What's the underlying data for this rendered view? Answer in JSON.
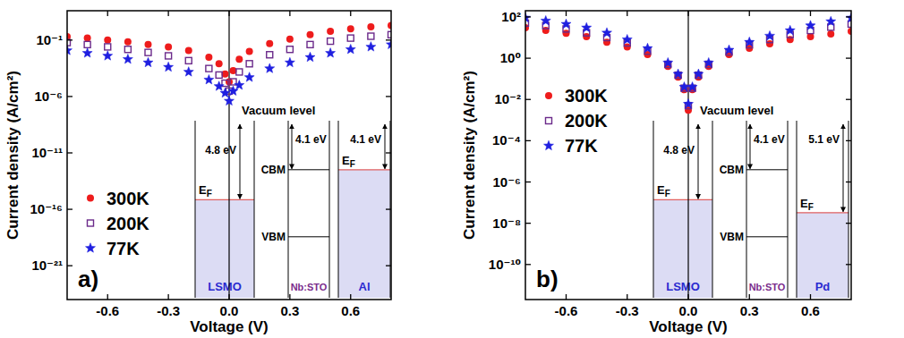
{
  "chart_data": [
    {
      "type": "scatter",
      "x_label": "Voltage (V)",
      "y_label": "Current density (A/cm²)",
      "log": "y",
      "grid": false,
      "legend": "center left",
      "xlim": [
        -0.8,
        0.8
      ],
      "xticks": [
        -0.6,
        -0.3,
        {
          "value": 0,
          "label": "0.0"
        },
        0.3,
        0.6
      ],
      "ylim": [
        1e-24,
        40
      ],
      "yticks": [
        {
          "value": 1e-21,
          "label": "10⁻²¹"
        },
        {
          "value": 1e-16,
          "label": "10⁻¹⁶"
        },
        {
          "value": 1e-11,
          "label": "10⁻¹¹"
        },
        {
          "value": 1e-06,
          "label": "10⁻⁶"
        },
        {
          "value": 0.1,
          "label": "10⁻¹"
        }
      ],
      "x": [
        -0.8,
        -0.7,
        -0.6,
        -0.5,
        -0.4,
        -0.3,
        -0.2,
        -0.1,
        -0.05,
        -0.02,
        0,
        0.02,
        0.05,
        0.1,
        0.2,
        0.3,
        0.4,
        0.5,
        0.6,
        0.7,
        0.8
      ],
      "series": [
        {
          "name": "300K",
          "color": "#ee1c1c",
          "marker": "circle",
          "values": [
            0.2,
            0.15,
            0.1,
            0.07,
            0.04,
            0.025,
            0.012,
            0.003,
            0.0008,
            0.0001,
            2e-05,
            0.0002,
            0.002,
            0.01,
            0.05,
            0.12,
            0.3,
            0.6,
            1,
            1.5,
            2
          ]
        },
        {
          "name": "200K",
          "color": "#6b2a8a",
          "marker": "square_open",
          "values": [
            0.06,
            0.04,
            0.025,
            0.015,
            0.008,
            0.004,
            0.0015,
            0.0003,
            8e-05,
            1.5e-05,
            3e-06,
            2e-05,
            0.00015,
            0.0008,
            0.005,
            0.015,
            0.04,
            0.08,
            0.15,
            0.22,
            0.3
          ]
        },
        {
          "name": "77K",
          "color": "#1f1fe0",
          "marker": "star",
          "values": [
            0.012,
            0.007,
            0.004,
            0.002,
            0.001,
            0.0004,
            0.00015,
            3e-05,
            8e-06,
            2e-06,
            4e-07,
            3e-06,
            1e-05,
            5e-05,
            0.0003,
            0.001,
            0.003,
            0.007,
            0.015,
            0.025,
            0.04
          ]
        }
      ],
      "annotations": {
        "panel_label": "a)",
        "band_diagram": {
          "vacuum": "Vacuum level",
          "fermi": "EF",
          "cbm": "CBM",
          "vbm": "VBM",
          "layers": [
            {
              "name": "LSMO",
              "color": "#2a2ad0",
              "work_function": {
                "value": 4.8,
                "label": "4.8 eV"
              }
            },
            {
              "name": "Nb:STO",
              "color": "#7a2d8c",
              "electron_affinity": {
                "value": 4.1,
                "label": "4.1 eV"
              }
            },
            {
              "name": "Al",
              "color": "#2a2ad0",
              "work_function": {
                "value": 4.1,
                "label": "4.1 eV"
              }
            }
          ]
        }
      }
    },
    {
      "type": "scatter",
      "x_label": "Voltage (V)",
      "y_label": "Current density (A/cm²)",
      "log": "y",
      "grid": false,
      "legend": "upper left",
      "xlim": [
        -0.8,
        0.8
      ],
      "xticks": [
        -0.6,
        -0.3,
        {
          "value": 0,
          "label": "0.0"
        },
        0.3,
        0.6
      ],
      "ylim": [
        2e-12,
        200
      ],
      "yticks": [
        {
          "value": 1e-10,
          "label": "10⁻¹⁰"
        },
        {
          "value": 1e-08,
          "label": "10⁻⁸"
        },
        {
          "value": 1e-06,
          "label": "10⁻⁶"
        },
        {
          "value": 0.0001,
          "label": "10⁻⁴"
        },
        {
          "value": 0.01,
          "label": "10⁻²"
        },
        {
          "value": 1,
          "label": "10⁰"
        },
        {
          "value": 100,
          "label": "10²"
        }
      ],
      "x": [
        -0.8,
        -0.7,
        -0.6,
        -0.5,
        -0.4,
        -0.3,
        -0.2,
        -0.1,
        -0.05,
        -0.02,
        0,
        0.02,
        0.05,
        0.1,
        0.2,
        0.3,
        0.4,
        0.5,
        0.6,
        0.7,
        0.8
      ],
      "series": [
        {
          "name": "300K",
          "color": "#ee1c1c",
          "marker": "circle",
          "values": [
            30,
            22,
            16,
            11,
            6,
            3.5,
            1.5,
            0.4,
            0.12,
            0.03,
            0.003,
            0.03,
            0.12,
            0.4,
            1.5,
            3,
            5,
            8,
            11,
            15,
            20
          ]
        },
        {
          "name": "200K",
          "color": "#6b2a8a",
          "marker": "square_open",
          "values": [
            50,
            38,
            26,
            17,
            10,
            5.5,
            2.2,
            0.5,
            0.15,
            0.035,
            0.005,
            0.035,
            0.15,
            0.5,
            2,
            4.5,
            8,
            14,
            22,
            32,
            45
          ]
        },
        {
          "name": "77K",
          "color": "#1f1fe0",
          "marker": "star",
          "values": [
            90,
            65,
            45,
            30,
            17,
            8,
            3,
            0.6,
            0.17,
            0.04,
            0.006,
            0.04,
            0.17,
            0.6,
            2.5,
            6,
            12,
            22,
            38,
            60,
            90
          ]
        }
      ],
      "annotations": {
        "panel_label": "b)",
        "band_diagram": {
          "vacuum": "Vacuum level",
          "fermi": "EF",
          "cbm": "CBM",
          "vbm": "VBM",
          "layers": [
            {
              "name": "LSMO",
              "color": "#2a2ad0",
              "work_function": {
                "value": 4.8,
                "label": "4.8 eV"
              }
            },
            {
              "name": "Nb:STO",
              "color": "#7a2d8c",
              "electron_affinity": {
                "value": 4.1,
                "label": "4.1 eV"
              }
            },
            {
              "name": "Pd",
              "color": "#2a2ad0",
              "work_function": {
                "value": 5.1,
                "label": "5.1 eV"
              }
            }
          ]
        }
      }
    }
  ]
}
